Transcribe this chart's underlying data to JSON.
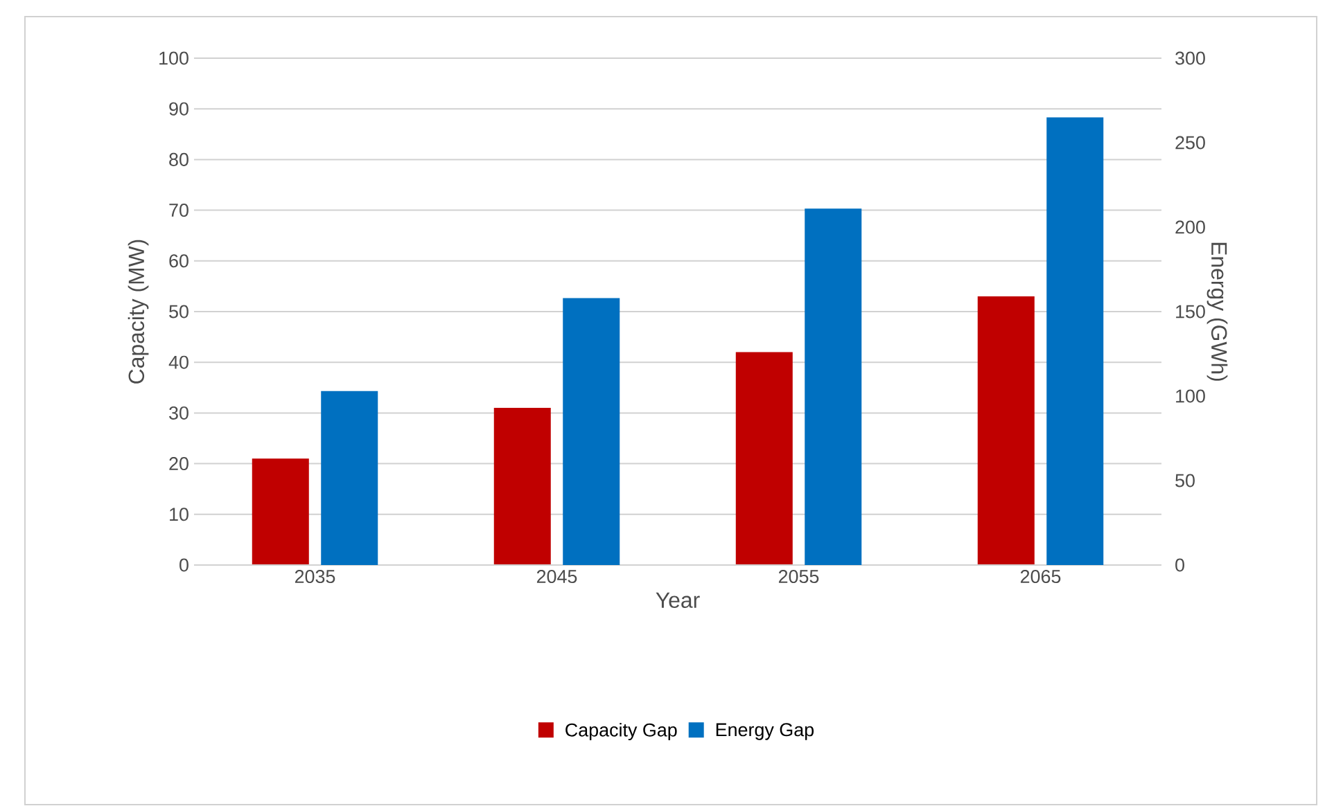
{
  "chart_data": {
    "type": "bar",
    "xlabel": "Year",
    "ylabel": "Capacity (MW)",
    "y2label": "Energy (GWh)",
    "categories": [
      "2035",
      "2045",
      "2055",
      "2065"
    ],
    "series": [
      {
        "name": "Capacity Gap",
        "color": "#c00000",
        "values": [
          21,
          31,
          42,
          53
        ]
      },
      {
        "name": "Energy Gap",
        "color": "#0070c0",
        "axis": "y2",
        "values": [
          103,
          158,
          211,
          265
        ]
      }
    ],
    "ylim": [
      0,
      100
    ],
    "yticks": [
      0,
      10,
      20,
      30,
      40,
      50,
      60,
      70,
      80,
      90,
      100
    ],
    "y2lim": [
      0,
      300
    ],
    "y2ticks": [
      0,
      50,
      100,
      150,
      200,
      250,
      300
    ],
    "grid": "y",
    "legend": "bottom"
  }
}
